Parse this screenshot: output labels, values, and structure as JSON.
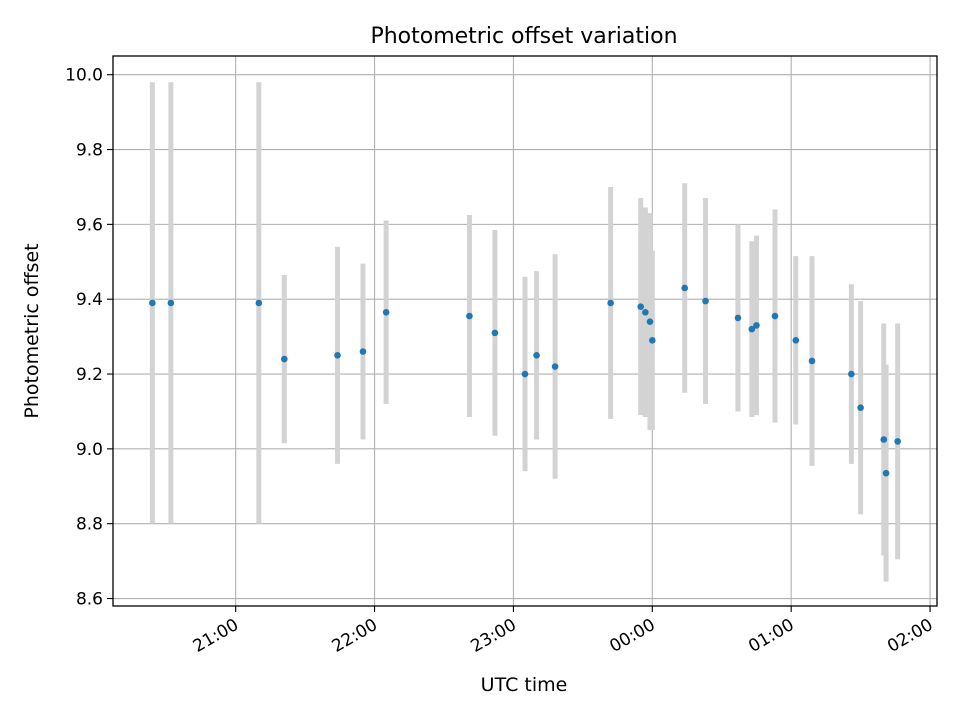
{
  "chart_data": {
    "type": "scatter",
    "title": "Photometric offset variation",
    "xlabel": "UTC time",
    "ylabel": "Photometric offset",
    "x_tick_labels": [
      "21:00",
      "22:00",
      "23:00",
      "00:00",
      "01:00",
      "02:00"
    ],
    "y_tick_labels": [
      "8.6",
      "8.8",
      "9.0",
      "9.2",
      "9.4",
      "9.6",
      "9.8",
      "10.0"
    ],
    "xlim": [
      "20:07",
      "02:03"
    ],
    "ylim": [
      8.58,
      10.05
    ],
    "grid": true,
    "point_color": "#1f77b4",
    "errorbar_color": "#d3d3d3",
    "points": [
      {
        "time": "20:24",
        "y": 9.39,
        "err": 0.59
      },
      {
        "time": "20:32",
        "y": 9.39,
        "err": 0.59
      },
      {
        "time": "21:10",
        "y": 9.39,
        "err": 0.59
      },
      {
        "time": "21:21",
        "y": 9.24,
        "err": 0.225
      },
      {
        "time": "21:44",
        "y": 9.25,
        "err": 0.29
      },
      {
        "time": "21:55",
        "y": 9.26,
        "err": 0.235
      },
      {
        "time": "22:05",
        "y": 9.365,
        "err": 0.245
      },
      {
        "time": "22:41",
        "y": 9.355,
        "err": 0.27
      },
      {
        "time": "22:52",
        "y": 9.31,
        "err": 0.275
      },
      {
        "time": "23:05",
        "y": 9.2,
        "err": 0.26
      },
      {
        "time": "23:10",
        "y": 9.25,
        "err": 0.225
      },
      {
        "time": "23:18",
        "y": 9.22,
        "err": 0.3
      },
      {
        "time": "23:42",
        "y": 9.39,
        "err": 0.31
      },
      {
        "time": "23:55",
        "y": 9.38,
        "err": 0.29
      },
      {
        "time": "23:57",
        "y": 9.365,
        "err": 0.28
      },
      {
        "time": "23:59",
        "y": 9.34,
        "err": 0.29
      },
      {
        "time": "24:00",
        "y": 9.29,
        "err": 0.24
      },
      {
        "time": "24:14",
        "y": 9.43,
        "err": 0.28
      },
      {
        "time": "24:23",
        "y": 9.395,
        "err": 0.275
      },
      {
        "time": "24:37",
        "y": 9.35,
        "err": 0.25
      },
      {
        "time": "24:43",
        "y": 9.32,
        "err": 0.235
      },
      {
        "time": "24:45",
        "y": 9.33,
        "err": 0.24
      },
      {
        "time": "24:53",
        "y": 9.355,
        "err": 0.285
      },
      {
        "time": "25:02",
        "y": 9.29,
        "err": 0.225
      },
      {
        "time": "25:09",
        "y": 9.235,
        "err": 0.28
      },
      {
        "time": "25:26",
        "y": 9.2,
        "err": 0.24
      },
      {
        "time": "25:30",
        "y": 9.11,
        "err": 0.285
      },
      {
        "time": "25:40",
        "y": 9.025,
        "err": 0.31
      },
      {
        "time": "25:41",
        "y": 8.935,
        "err": 0.29
      },
      {
        "time": "25:46",
        "y": 9.02,
        "err": 0.315
      }
    ]
  }
}
